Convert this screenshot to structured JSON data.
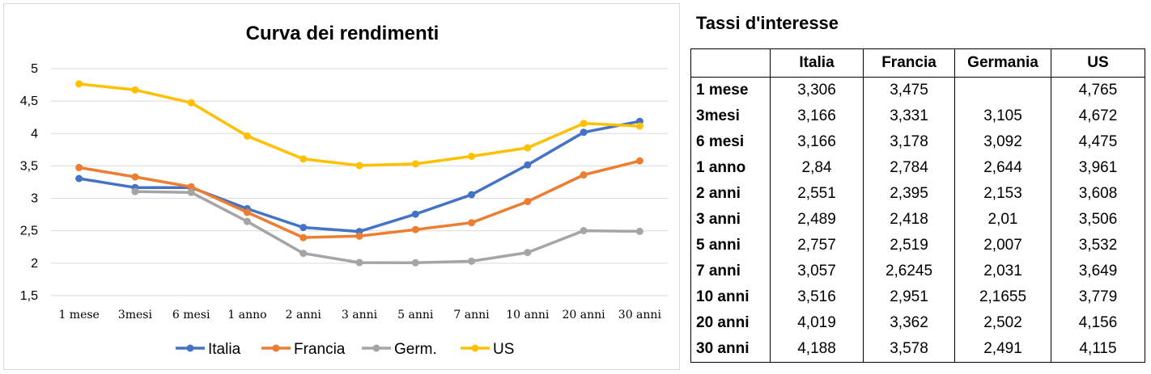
{
  "chart_data": {
    "type": "line",
    "title": "Curva dei rendimenti",
    "categories": [
      "1 mese",
      "3mesi",
      "6 mesi",
      "1 anno",
      "2 anni",
      "3 anni",
      "5 anni",
      "7 anni",
      "10 anni",
      "20 anni",
      "30 anni"
    ],
    "series": [
      {
        "name": "Italia",
        "color": "#4472c4",
        "values": [
          3.306,
          3.166,
          3.166,
          2.84,
          2.551,
          2.489,
          2.757,
          3.057,
          3.516,
          4.019,
          4.188
        ]
      },
      {
        "name": "Francia",
        "color": "#ed7d31",
        "values": [
          3.475,
          3.331,
          3.178,
          2.784,
          2.395,
          2.418,
          2.519,
          2.6245,
          2.951,
          3.362,
          3.578
        ]
      },
      {
        "name": "Germ.",
        "color": "#a5a5a5",
        "values": [
          null,
          3.105,
          3.092,
          2.644,
          2.153,
          2.01,
          2.007,
          2.031,
          2.1655,
          2.502,
          2.491
        ]
      },
      {
        "name": "US",
        "color": "#ffc000",
        "values": [
          4.765,
          4.672,
          4.475,
          3.961,
          3.608,
          3.506,
          3.532,
          3.649,
          3.779,
          4.156,
          4.115
        ]
      }
    ],
    "yticks": [
      "1,5",
      "2",
      "2,5",
      "3",
      "3,5",
      "4",
      "4,5",
      "5"
    ],
    "ylim": [
      1.5,
      5
    ],
    "grid": true,
    "legend_position": "bottom"
  },
  "table": {
    "title": "Tassi d'interesse",
    "columns": [
      "Italia",
      "Francia",
      "Germania",
      "US"
    ],
    "rows": [
      {
        "label": "1 mese",
        "values": [
          "3,306",
          "3,475",
          "",
          "4,765"
        ]
      },
      {
        "label": "3mesi",
        "values": [
          "3,166",
          "3,331",
          "3,105",
          "4,672"
        ]
      },
      {
        "label": "6 mesi",
        "values": [
          "3,166",
          "3,178",
          "3,092",
          "4,475"
        ]
      },
      {
        "label": "1 anno",
        "values": [
          "2,84",
          "2,784",
          "2,644",
          "3,961"
        ]
      },
      {
        "label": "2 anni",
        "values": [
          "2,551",
          "2,395",
          "2,153",
          "3,608"
        ]
      },
      {
        "label": "3 anni",
        "values": [
          "2,489",
          "2,418",
          "2,01",
          "3,506"
        ]
      },
      {
        "label": "5 anni",
        "values": [
          "2,757",
          "2,519",
          "2,007",
          "3,532"
        ]
      },
      {
        "label": "7 anni",
        "values": [
          "3,057",
          "2,6245",
          "2,031",
          "3,649"
        ]
      },
      {
        "label": "10 anni",
        "values": [
          "3,516",
          "2,951",
          "2,1655",
          "3,779"
        ]
      },
      {
        "label": "20 anni",
        "values": [
          "4,019",
          "3,362",
          "2,502",
          "4,156"
        ]
      },
      {
        "label": "30 anni",
        "values": [
          "4,188",
          "3,578",
          "2,491",
          "4,115"
        ]
      }
    ]
  }
}
